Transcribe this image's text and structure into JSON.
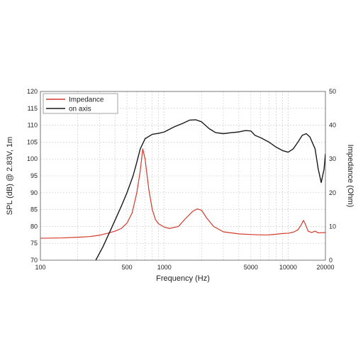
{
  "chart_data": {
    "type": "line",
    "xlabel": "Frequency (Hz)",
    "ylabel_left": "SPL (dB) @ 2.83V, 1m",
    "ylabel_right": "Impedance (Ohm)",
    "x_scale": "log",
    "xlim": [
      100,
      20000
    ],
    "ylim_left": [
      70,
      120
    ],
    "ylim_right": [
      0,
      50
    ],
    "x_tick_labels": [
      {
        "value": 100,
        "label": "100"
      },
      {
        "value": 500,
        "label": "500"
      },
      {
        "value": 1000,
        "label": "1000"
      },
      {
        "value": 5000,
        "label": "5000"
      },
      {
        "value": 10000,
        "label": "10000"
      },
      {
        "value": 20000,
        "label": "20000"
      }
    ],
    "y_left_ticks": [
      70,
      75,
      80,
      85,
      90,
      95,
      100,
      105,
      110,
      115,
      120
    ],
    "y_right_ticks": [
      0,
      10,
      20,
      30,
      40,
      50
    ],
    "grid": true,
    "legend_position": "top-left",
    "series": [
      {
        "name": "Impedance",
        "axis": "right",
        "color": "#d23a2a",
        "points": [
          [
            100,
            6.5
          ],
          [
            150,
            6.6
          ],
          [
            200,
            6.8
          ],
          [
            250,
            7.0
          ],
          [
            300,
            7.4
          ],
          [
            350,
            8.0
          ],
          [
            400,
            8.6
          ],
          [
            450,
            9.4
          ],
          [
            500,
            11.0
          ],
          [
            550,
            14.0
          ],
          [
            600,
            20.0
          ],
          [
            640,
            26.5
          ],
          [
            670,
            33.0
          ],
          [
            700,
            30.0
          ],
          [
            750,
            21.0
          ],
          [
            800,
            15.0
          ],
          [
            850,
            12.0
          ],
          [
            900,
            10.8
          ],
          [
            1000,
            9.8
          ],
          [
            1100,
            9.4
          ],
          [
            1300,
            10.0
          ],
          [
            1500,
            12.5
          ],
          [
            1700,
            14.5
          ],
          [
            1850,
            15.2
          ],
          [
            2000,
            14.8
          ],
          [
            2200,
            12.5
          ],
          [
            2500,
            10.0
          ],
          [
            3000,
            8.4
          ],
          [
            4000,
            7.8
          ],
          [
            5000,
            7.6
          ],
          [
            6000,
            7.5
          ],
          [
            7000,
            7.5
          ],
          [
            8000,
            7.7
          ],
          [
            9000,
            7.9
          ],
          [
            10000,
            8.0
          ],
          [
            11000,
            8.3
          ],
          [
            12000,
            9.0
          ],
          [
            12800,
            10.6
          ],
          [
            13300,
            11.8
          ],
          [
            13800,
            10.6
          ],
          [
            14500,
            8.6
          ],
          [
            15500,
            8.2
          ],
          [
            16500,
            8.6
          ],
          [
            17500,
            8.1
          ],
          [
            20000,
            8.2
          ]
        ]
      },
      {
        "name": "on axis",
        "axis": "left",
        "color": "#1a1a1a",
        "points": [
          [
            280,
            70.0
          ],
          [
            320,
            74.0
          ],
          [
            380,
            80.0
          ],
          [
            450,
            86.0
          ],
          [
            500,
            90.0
          ],
          [
            560,
            95.0
          ],
          [
            600,
            99.0
          ],
          [
            640,
            103.0
          ],
          [
            700,
            106.0
          ],
          [
            800,
            107.3
          ],
          [
            900,
            107.6
          ],
          [
            1000,
            108.0
          ],
          [
            1200,
            109.5
          ],
          [
            1400,
            110.5
          ],
          [
            1600,
            111.5
          ],
          [
            1800,
            111.6
          ],
          [
            2000,
            111.0
          ],
          [
            2300,
            109.0
          ],
          [
            2600,
            107.8
          ],
          [
            3000,
            107.5
          ],
          [
            3500,
            107.8
          ],
          [
            4000,
            108.0
          ],
          [
            4500,
            108.4
          ],
          [
            5000,
            108.3
          ],
          [
            5400,
            107.0
          ],
          [
            6000,
            106.3
          ],
          [
            7000,
            105.0
          ],
          [
            8000,
            103.5
          ],
          [
            9000,
            102.5
          ],
          [
            10000,
            102.0
          ],
          [
            11000,
            103.0
          ],
          [
            12000,
            105.0
          ],
          [
            13000,
            107.0
          ],
          [
            14000,
            107.5
          ],
          [
            15000,
            106.5
          ],
          [
            16500,
            103.0
          ],
          [
            17500,
            97.0
          ],
          [
            18500,
            93.0
          ],
          [
            19500,
            97.0
          ],
          [
            20000,
            101.5
          ]
        ]
      }
    ]
  }
}
